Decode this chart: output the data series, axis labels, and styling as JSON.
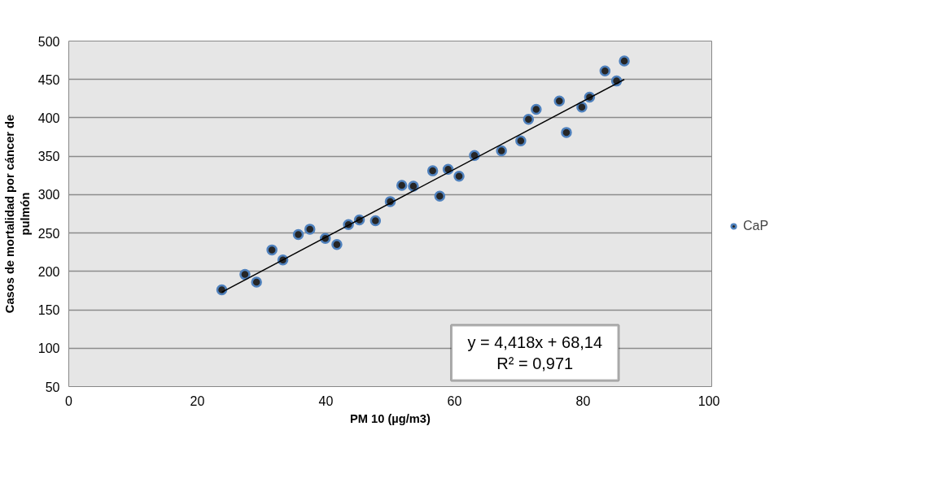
{
  "chart_data": {
    "type": "scatter",
    "xlabel": "PM 10 (µg/m3)",
    "ylabel": "Casos de mortalidad por cáncer de pulmón",
    "xlim": [
      0,
      100
    ],
    "ylim": [
      50,
      500
    ],
    "xticks": [
      0,
      20,
      40,
      60,
      80,
      100
    ],
    "yticks": [
      50,
      100,
      150,
      200,
      250,
      300,
      350,
      400,
      450,
      500
    ],
    "grid": "y",
    "legend": "right",
    "series": [
      {
        "name": "CaP",
        "color": "#262626",
        "marker": "circle",
        "x": [
          23.8,
          27.4,
          29.2,
          31.6,
          33.3,
          35.7,
          37.5,
          39.9,
          41.7,
          43.5,
          45.2,
          47.7,
          50.0,
          51.8,
          53.6,
          56.6,
          57.7,
          59.0,
          60.7,
          63.1,
          67.3,
          70.3,
          71.5,
          72.7,
          76.3,
          77.4,
          79.8,
          81.0,
          83.4,
          85.2,
          86.4
        ],
        "values": [
          176,
          196,
          186,
          228,
          215,
          248,
          255,
          243,
          235,
          261,
          267,
          266,
          291,
          312,
          311,
          331,
          298,
          333,
          324,
          351,
          357,
          370,
          398,
          411,
          422,
          381,
          414,
          427,
          461,
          448,
          474
        ]
      },
      {
        "type": "line",
        "color": "#000000",
        "x": [
          23.8,
          86.4
        ],
        "values": [
          173,
          450
        ]
      }
    ],
    "annotations": [
      "y = 4,418x + 68,14",
      "R² = 0,971"
    ]
  }
}
